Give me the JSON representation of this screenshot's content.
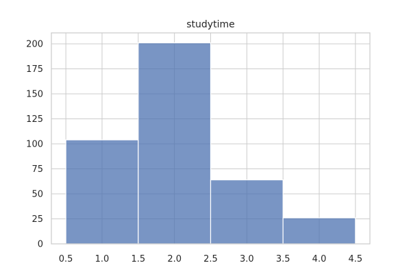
{
  "chart_data": {
    "type": "bar",
    "title": "studytime",
    "xlabel": "",
    "ylabel": "",
    "bins": [
      {
        "x0": 0.5,
        "x1": 1.5,
        "value": 104
      },
      {
        "x0": 1.5,
        "x1": 2.5,
        "value": 201
      },
      {
        "x0": 2.5,
        "x1": 3.5,
        "value": 64
      },
      {
        "x0": 3.5,
        "x1": 4.5,
        "value": 26
      }
    ],
    "xlim": [
      0.3,
      4.7
    ],
    "ylim": [
      0,
      211
    ],
    "xticks": [
      0.5,
      1.0,
      1.5,
      2.0,
      2.5,
      3.0,
      3.5,
      4.0,
      4.5
    ],
    "xtick_labels": [
      "0.5",
      "1.0",
      "1.5",
      "2.0",
      "2.5",
      "3.0",
      "3.5",
      "4.0",
      "4.5"
    ],
    "yticks": [
      0,
      25,
      50,
      75,
      100,
      125,
      150,
      175,
      200
    ],
    "ytick_labels": [
      "0",
      "25",
      "50",
      "75",
      "100",
      "125",
      "150",
      "175",
      "200"
    ],
    "grid": true,
    "bar_color": "#4c72b0"
  }
}
